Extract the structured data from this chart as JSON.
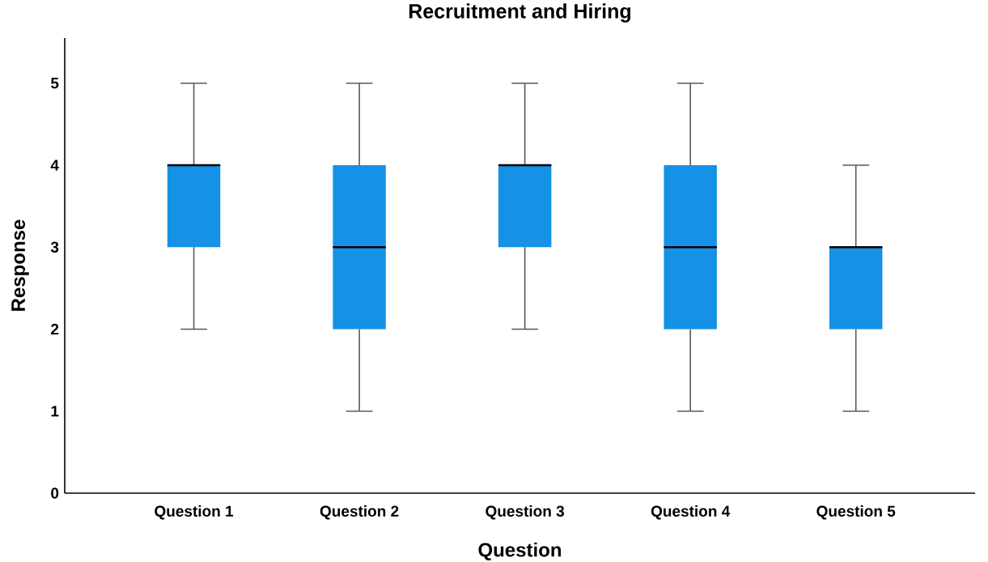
{
  "chart_data": {
    "type": "box",
    "title": "Recruitment and Hiring",
    "xlabel": "Question",
    "ylabel": "Response",
    "categories": [
      "Question 1",
      "Question 2",
      "Question 3",
      "Question 4",
      "Question 5"
    ],
    "boxes": [
      {
        "low": 2,
        "q1": 3,
        "median": 4,
        "q3": 4,
        "high": 5
      },
      {
        "low": 1,
        "q1": 2,
        "median": 3,
        "q3": 4,
        "high": 5
      },
      {
        "low": 2,
        "q1": 3,
        "median": 4,
        "q3": 4,
        "high": 5
      },
      {
        "low": 1,
        "q1": 2,
        "median": 3,
        "q3": 4,
        "high": 5
      },
      {
        "low": 1,
        "q1": 2,
        "median": 3,
        "q3": 3,
        "high": 4
      }
    ],
    "color": "#1591e6",
    "ylim": [
      0,
      5.55
    ],
    "yticks": [
      0,
      1,
      2,
      3,
      4,
      5
    ]
  }
}
